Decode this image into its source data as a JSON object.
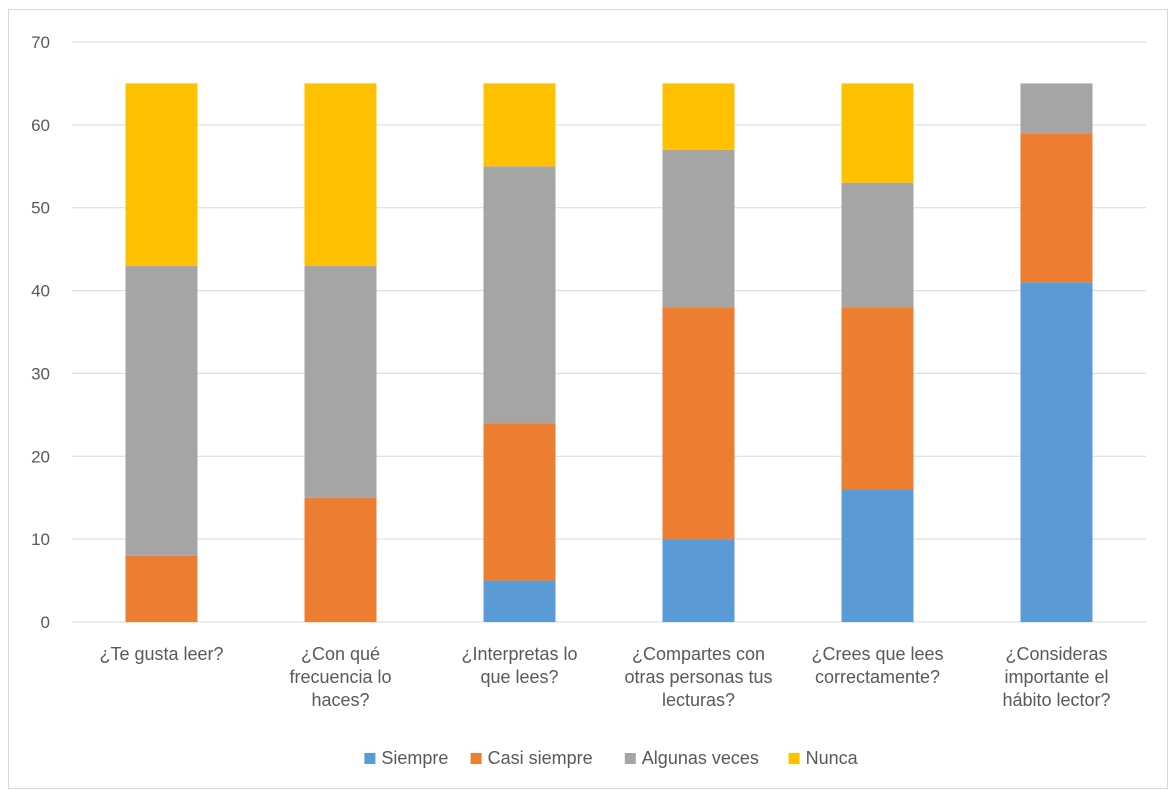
{
  "chart_data": {
    "type": "bar",
    "stacked": true,
    "categories": [
      [
        "¿Te gusta leer?"
      ],
      [
        "¿Con qué",
        "frecuencia lo",
        "haces?"
      ],
      [
        "¿Interpretas lo",
        "que lees?"
      ],
      [
        "¿Compartes con",
        "otras personas tus",
        "lecturas?"
      ],
      [
        "¿Crees que lees",
        "correctamente?"
      ],
      [
        "¿Consideras",
        "importante el",
        "hábito lector?"
      ]
    ],
    "series": [
      {
        "name": "Siempre",
        "color": "#5b9bd5",
        "values": [
          0,
          0,
          5,
          10,
          16,
          41
        ]
      },
      {
        "name": "Casi siempre",
        "color": "#ed7d31",
        "values": [
          8,
          15,
          19,
          28,
          22,
          18
        ]
      },
      {
        "name": "Algunas veces",
        "color": "#a5a5a5",
        "values": [
          35,
          28,
          31,
          19,
          15,
          6
        ]
      },
      {
        "name": "Nunca",
        "color": "#ffc000",
        "values": [
          22,
          22,
          10,
          8,
          12,
          0
        ]
      }
    ],
    "ylim": [
      0,
      70
    ],
    "yticks": [
      0,
      10,
      20,
      30,
      40,
      50,
      60,
      70
    ],
    "grid": true,
    "legend": "bottom",
    "gridColor": "#d9d9d9",
    "textColor": "#595959"
  }
}
